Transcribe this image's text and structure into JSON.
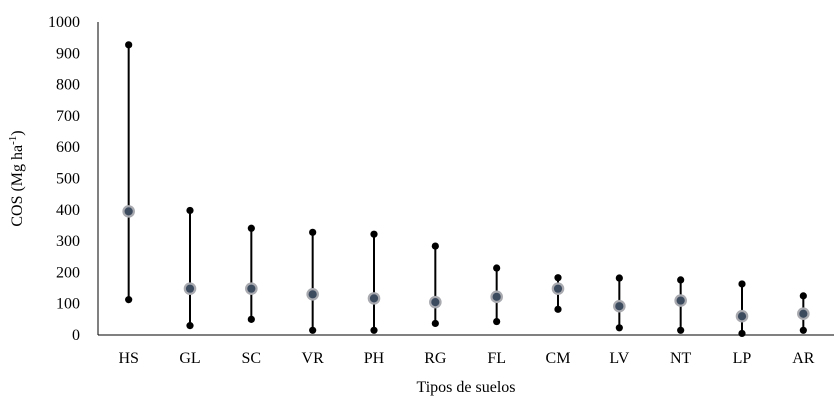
{
  "chart_data": {
    "type": "range-dot",
    "xlabel": "Tipos de suelos",
    "ylabel_main": "COS (Mg ha",
    "ylabel_sup": "-1",
    "ylabel_close": ")",
    "ylim": [
      0,
      1000
    ],
    "yticks": [
      0,
      100,
      200,
      300,
      400,
      500,
      600,
      700,
      800,
      900,
      1000
    ],
    "categories": [
      "HS",
      "GL",
      "SC",
      "VR",
      "PH",
      "RG",
      "FL",
      "CM",
      "LV",
      "NT",
      "LP",
      "AR"
    ],
    "min": [
      113,
      30,
      50,
      15,
      15,
      37,
      43,
      82,
      23,
      15,
      5,
      15
    ],
    "max": [
      927,
      398,
      341,
      328,
      322,
      284,
      214,
      183,
      182,
      176,
      163,
      125
    ],
    "mean": [
      395,
      148,
      148,
      130,
      117,
      105,
      122,
      148,
      92,
      110,
      60,
      68
    ],
    "grid": false,
    "legend": "none",
    "colors": {
      "range_line": "#000000",
      "endpoint": "#000000",
      "mean_fill": "#3d4b5f",
      "mean_outline": "#a8aab0",
      "axis": "#000000"
    }
  }
}
